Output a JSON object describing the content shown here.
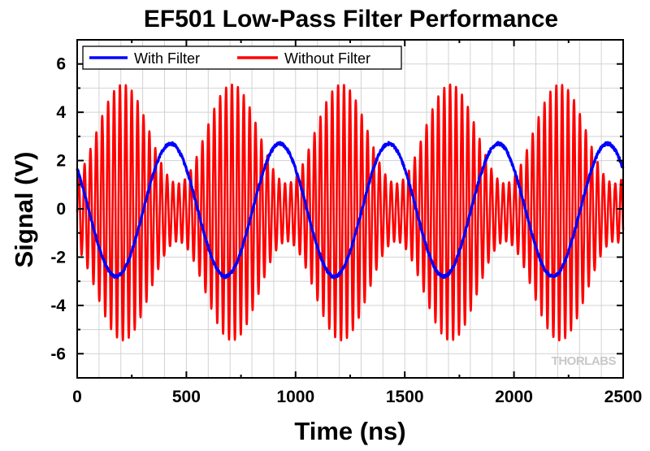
{
  "watermark": "THORLABS",
  "chart_data": {
    "type": "line",
    "title": "EF501 Low-Pass Filter Performance",
    "xlabel": "Time (ns)",
    "ylabel": "Signal (V)",
    "xlim": [
      0,
      2500
    ],
    "ylim": [
      -7,
      7
    ],
    "x_ticks": [
      0,
      500,
      1000,
      1500,
      2000,
      2500
    ],
    "x_tick_labels": [
      "0",
      "500",
      "1000",
      "1500",
      "2000",
      "2500"
    ],
    "y_ticks": [
      -6,
      -4,
      -2,
      0,
      2,
      4,
      6
    ],
    "y_tick_labels": [
      "-6",
      "-4",
      "-2",
      "0",
      "2",
      "4",
      "6"
    ],
    "grid": true,
    "legend_position": "top-left",
    "series": [
      {
        "name": "With Filter",
        "color": "#0000ff",
        "model": "sine",
        "amplitude": 2.75,
        "period": 500,
        "peak_at": 428,
        "offset": -0.05,
        "noise": 0.06
      },
      {
        "name": "Without Filter",
        "color": "#ff0000",
        "model": "modulated-carrier",
        "carrier_period": 27,
        "envelope_period": 500,
        "envelope_max": 5.3,
        "envelope_min": 1.2,
        "envelope_peak_at": 210,
        "offset": -0.15
      }
    ]
  }
}
